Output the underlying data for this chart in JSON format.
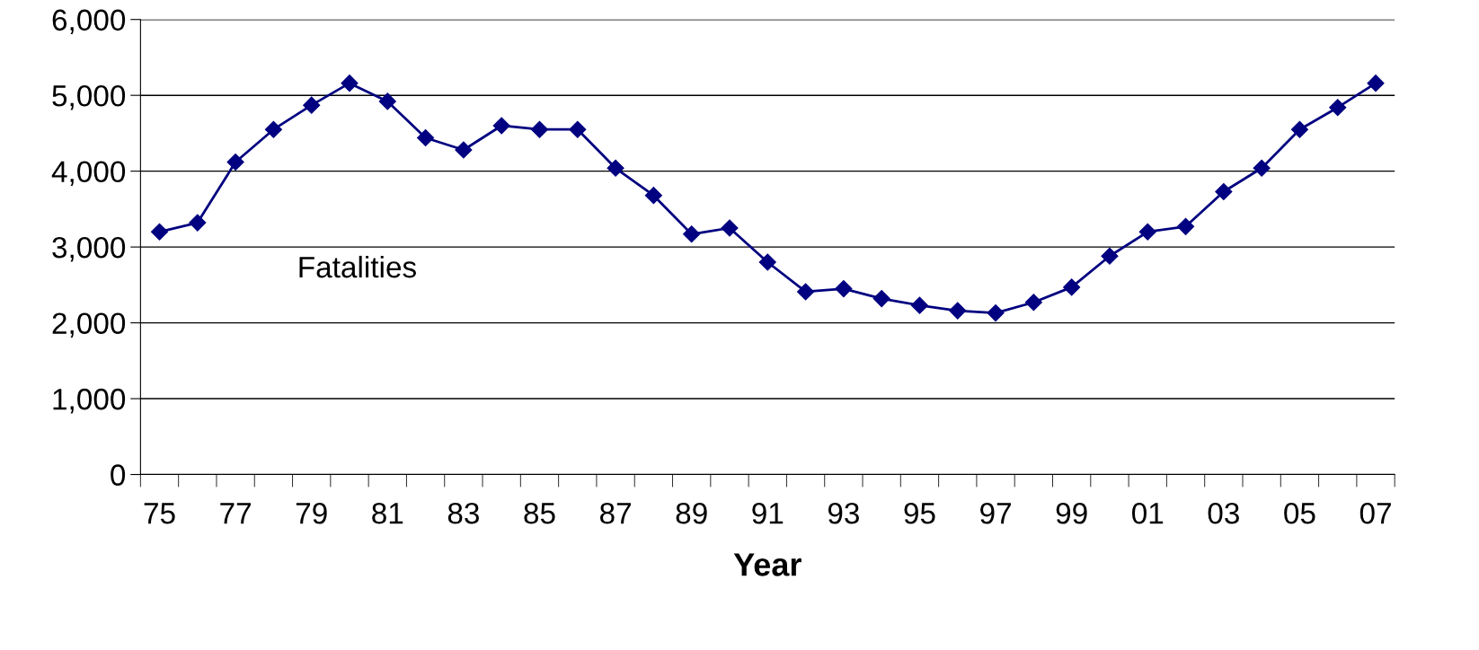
{
  "chart_data": {
    "type": "line",
    "xlabel": "Year",
    "categories": [
      "75",
      null,
      "77",
      null,
      "79",
      null,
      "81",
      null,
      "83",
      null,
      "85",
      null,
      "87",
      null,
      "89",
      null,
      "91",
      null,
      "93",
      null,
      "95",
      null,
      "97",
      null,
      "99",
      null,
      "01",
      null,
      "03",
      null,
      "05",
      null,
      "07"
    ],
    "series": [
      {
        "name": "Fatalities",
        "color": "#000080",
        "values": [
          3200,
          3320,
          4120,
          4550,
          4870,
          5160,
          4920,
          4440,
          4280,
          4600,
          4550,
          4550,
          4040,
          3680,
          3170,
          3250,
          2800,
          2410,
          2450,
          2320,
          2230,
          2160,
          2130,
          2270,
          2470,
          2880,
          3200,
          3270,
          3730,
          4040,
          4550,
          4840,
          5160
        ]
      }
    ],
    "ylim": [
      0,
      6000
    ],
    "yticks": [
      {
        "value": 0,
        "label": "0"
      },
      {
        "value": 1000,
        "label": "1,000"
      },
      {
        "value": 2000,
        "label": "2,000"
      },
      {
        "value": 3000,
        "label": "3,000"
      },
      {
        "value": 4000,
        "label": "4,000"
      },
      {
        "value": 5000,
        "label": "5,000"
      },
      {
        "value": 6000,
        "label": "6,000"
      }
    ],
    "grid": "y",
    "legend": false,
    "marker": "diamond",
    "line_style": "solid"
  }
}
